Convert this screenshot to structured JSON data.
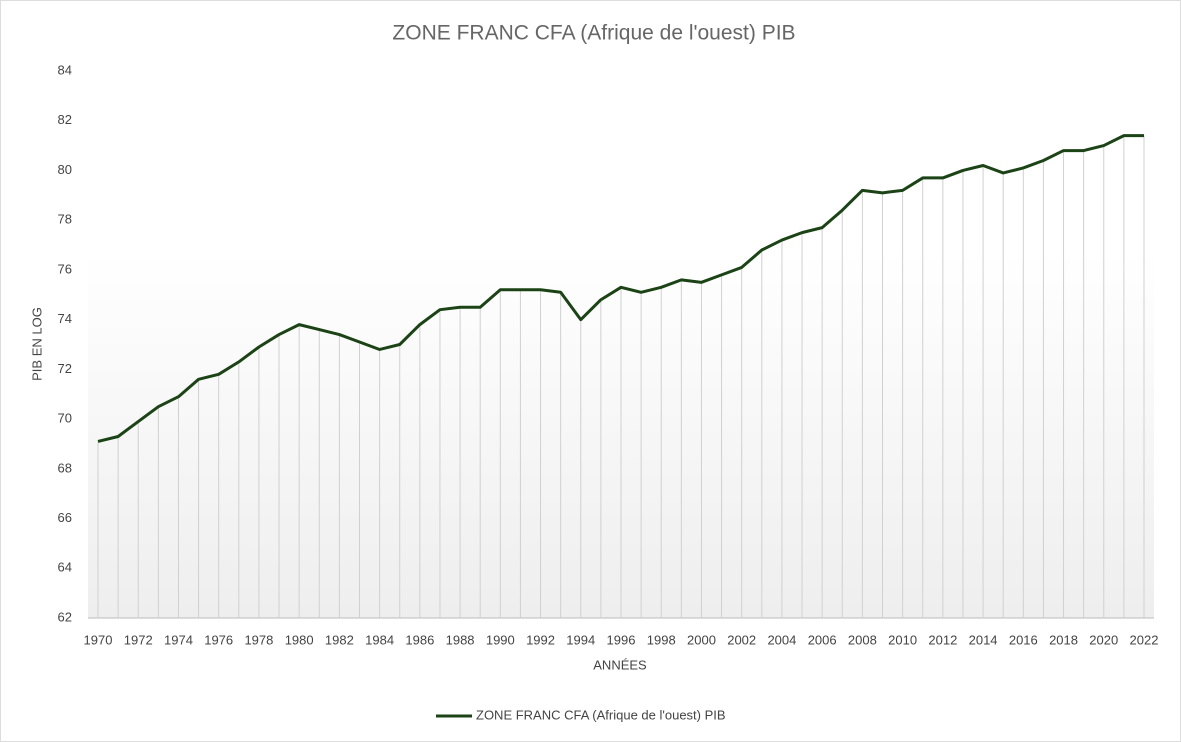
{
  "chart_data": {
    "type": "line",
    "title": "ZONE FRANC CFA (Afrique de l'ouest) PIB",
    "x_label": "ANNÉES",
    "y_label": "PIB EN LOG",
    "categories": [
      "1970",
      null,
      "1972",
      null,
      "1974",
      null,
      "1976",
      null,
      "1978",
      null,
      "1980",
      null,
      "1982",
      null,
      "1984",
      null,
      "1986",
      null,
      "1988",
      null,
      "1990",
      null,
      "1992",
      null,
      "1994",
      null,
      "1996",
      null,
      "1998",
      null,
      "2000",
      null,
      "2002",
      null,
      "2004",
      null,
      "2006",
      null,
      "2008",
      null,
      "2010",
      null,
      "2012",
      null,
      "2014",
      null,
      "2016",
      null,
      "2018",
      null,
      "2020",
      null,
      "2022"
    ],
    "series": [
      {
        "name": "ZONE FRANC CFA (Afrique de l'ouest) PIB",
        "color": "#1b4316",
        "values": [
          69.1,
          69.3,
          69.9,
          70.5,
          70.9,
          71.6,
          71.8,
          72.3,
          72.9,
          73.4,
          73.8,
          73.6,
          73.4,
          73.1,
          72.8,
          73.0,
          73.8,
          74.4,
          74.5,
          74.5,
          75.2,
          75.2,
          75.2,
          75.1,
          74.0,
          74.8,
          75.3,
          75.1,
          75.3,
          75.6,
          75.5,
          75.8,
          76.1,
          76.8,
          77.2,
          77.5,
          77.7,
          78.4,
          79.2,
          79.1,
          79.2,
          79.7,
          79.7,
          80.0,
          80.2,
          79.9,
          80.1,
          80.4,
          80.8,
          80.8,
          81.0,
          81.4,
          81.4
        ]
      }
    ],
    "ylim": [
      62,
      84
    ],
    "yticks": [
      62,
      64,
      66,
      68,
      70,
      72,
      74,
      76,
      78,
      80,
      82,
      84
    ],
    "legend": "bottom"
  }
}
